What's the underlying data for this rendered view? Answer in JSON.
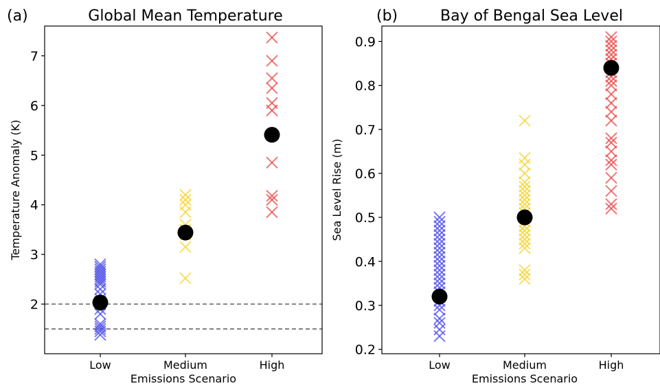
{
  "chart_data": [
    {
      "type": "scatter",
      "panel_label": "(a)",
      "title": "Global Mean Temperature",
      "xlabel": "Emissions Scenario",
      "ylabel": "Temperature Anomaly (K)",
      "categories": [
        "Low",
        "Medium",
        "High"
      ],
      "ylim": [
        1.0,
        7.6
      ],
      "yticks": [
        "2",
        "3",
        "4",
        "5",
        "6",
        "7"
      ],
      "grid": false,
      "reference_lines": [
        2.0,
        1.5
      ],
      "series": [
        {
          "category": "Low",
          "color": "#4f4fe6",
          "values": [
            1.38,
            1.45,
            1.5,
            1.55,
            1.6,
            1.8,
            1.9,
            2.0,
            2.05,
            2.1,
            2.2,
            2.3,
            2.4,
            2.45,
            2.5,
            2.55,
            2.6,
            2.65,
            2.7,
            2.75,
            2.8
          ]
        },
        {
          "category": "Medium",
          "color": "#f5d432",
          "values": [
            2.52,
            3.15,
            3.4,
            3.5,
            3.6,
            3.85,
            4.0,
            4.1,
            4.2
          ]
        },
        {
          "category": "High",
          "color": "#e84a4a",
          "values": [
            3.85,
            4.1,
            4.18,
            4.85,
            5.9,
            6.05,
            6.35,
            6.55,
            6.9,
            7.37
          ]
        }
      ],
      "means": [
        2.03,
        3.44,
        5.41
      ]
    },
    {
      "type": "scatter",
      "panel_label": "(b)",
      "title": "Bay of Bengal Sea Level",
      "xlabel": "Emissions Scenario",
      "ylabel": "Sea Level Rise (m)",
      "categories": [
        "Low",
        "Medium",
        "High"
      ],
      "ylim": [
        0.19,
        0.935
      ],
      "yticks": [
        "0.2",
        "0.3",
        "0.4",
        "0.5",
        "0.6",
        "0.7",
        "0.8",
        "0.9"
      ],
      "grid": false,
      "series": [
        {
          "category": "Low",
          "color": "#4f4fe6",
          "values": [
            0.23,
            0.245,
            0.26,
            0.27,
            0.29,
            0.3,
            0.31,
            0.32,
            0.33,
            0.34,
            0.35,
            0.36,
            0.37,
            0.38,
            0.39,
            0.4,
            0.41,
            0.42,
            0.43,
            0.44,
            0.45,
            0.46,
            0.47,
            0.48,
            0.49,
            0.5
          ]
        },
        {
          "category": "Medium",
          "color": "#f5d432",
          "values": [
            0.36,
            0.37,
            0.38,
            0.43,
            0.44,
            0.45,
            0.46,
            0.47,
            0.48,
            0.49,
            0.5,
            0.51,
            0.52,
            0.53,
            0.54,
            0.55,
            0.56,
            0.57,
            0.58,
            0.6,
            0.62,
            0.635,
            0.72
          ]
        },
        {
          "category": "High",
          "color": "#e84a4a",
          "values": [
            0.52,
            0.53,
            0.56,
            0.59,
            0.62,
            0.63,
            0.65,
            0.67,
            0.68,
            0.72,
            0.74,
            0.76,
            0.78,
            0.8,
            0.81,
            0.82,
            0.83,
            0.84,
            0.85,
            0.86,
            0.87,
            0.88,
            0.89,
            0.9,
            0.91
          ]
        }
      ],
      "means": [
        0.32,
        0.5,
        0.84
      ]
    }
  ]
}
